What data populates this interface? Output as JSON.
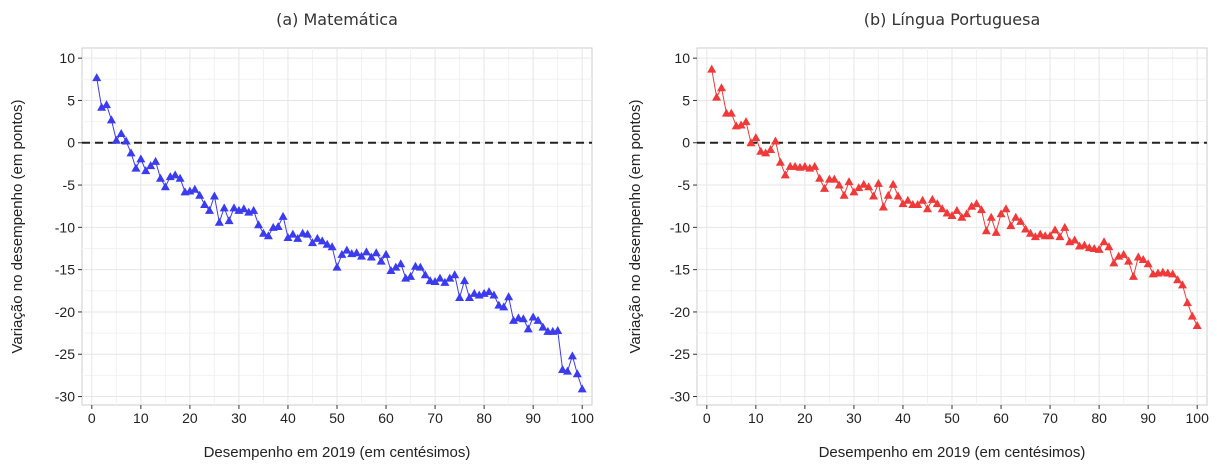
{
  "chart_data": [
    {
      "type": "line",
      "title": "(a) Matemática",
      "xlabel": "Desempenho em 2019 (em centésimos)",
      "ylabel": "Variação no desempenho (em pontos)",
      "x": [
        1,
        2,
        3,
        4,
        5,
        6,
        7,
        8,
        9,
        10,
        11,
        12,
        13,
        14,
        15,
        16,
        17,
        18,
        19,
        20,
        21,
        22,
        23,
        24,
        25,
        26,
        27,
        28,
        29,
        30,
        31,
        32,
        33,
        34,
        35,
        36,
        37,
        38,
        39,
        40,
        41,
        42,
        43,
        44,
        45,
        46,
        47,
        48,
        49,
        50,
        51,
        52,
        53,
        54,
        55,
        56,
        57,
        58,
        59,
        60,
        61,
        62,
        63,
        64,
        65,
        66,
        67,
        68,
        69,
        70,
        71,
        72,
        73,
        74,
        75,
        76,
        77,
        78,
        79,
        80,
        81,
        82,
        83,
        84,
        85,
        86,
        87,
        88,
        89,
        90,
        91,
        92,
        93,
        94,
        95,
        96,
        97,
        98,
        99,
        100
      ],
      "values": [
        7.7,
        4.2,
        4.5,
        2.7,
        0.3,
        1.1,
        0.2,
        -1.2,
        -3,
        -1.9,
        -3.3,
        -2.7,
        -2.2,
        -4.2,
        -5.2,
        -4,
        -3.8,
        -4.2,
        -5.8,
        -5.7,
        -5.5,
        -6.2,
        -7.3,
        -8,
        -6.3,
        -9.4,
        -7.7,
        -9.2,
        -7.7,
        -8,
        -7.8,
        -8.2,
        -8,
        -9.7,
        -10.7,
        -11,
        -10,
        -9.9,
        -8.7,
        -11.2,
        -10.8,
        -11.3,
        -10.7,
        -10.8,
        -11.8,
        -11.3,
        -11.6,
        -12,
        -12.3,
        -14.7,
        -13.2,
        -12.7,
        -13.1,
        -13,
        -13.4,
        -12.9,
        -13.5,
        -13,
        -14,
        -13.2,
        -15.1,
        -14.7,
        -14.3,
        -16,
        -15.8,
        -14.6,
        -14.7,
        -15.6,
        -16.3,
        -16.4,
        -16,
        -16.5,
        -16,
        -15.6,
        -18.3,
        -16.3,
        -18.3,
        -17.8,
        -18,
        -17.8,
        -17.6,
        -18,
        -19.2,
        -19.4,
        -18.2,
        -21,
        -20.7,
        -20.8,
        -22,
        -20.6,
        -21,
        -21.8,
        -22.3,
        -22.3,
        -22.2,
        -26.8,
        -27,
        -25.2,
        -27.3,
        -29.1
      ],
      "color": "#3b3bf0",
      "marker": "triangle",
      "hline": 0,
      "xlim": [
        -2,
        102
      ],
      "xticks": [
        0,
        10,
        20,
        30,
        40,
        50,
        60,
        70,
        80,
        90,
        100
      ],
      "ylim": [
        -31,
        11.2
      ],
      "yticks": [
        -30,
        -25,
        -20,
        -15,
        -10,
        -5,
        0,
        5,
        10
      ],
      "grid": true
    },
    {
      "type": "line",
      "title": "(b) Língua Portuguesa",
      "xlabel": "Desempenho em 2019 (em centésimos)",
      "ylabel": "Variação no desempenho (em pontos)",
      "x": [
        1,
        2,
        3,
        4,
        5,
        6,
        7,
        8,
        9,
        10,
        11,
        12,
        13,
        14,
        15,
        16,
        17,
        18,
        19,
        20,
        21,
        22,
        23,
        24,
        25,
        26,
        27,
        28,
        29,
        30,
        31,
        32,
        33,
        34,
        35,
        36,
        37,
        38,
        39,
        40,
        41,
        42,
        43,
        44,
        45,
        46,
        47,
        48,
        49,
        50,
        51,
        52,
        53,
        54,
        55,
        56,
        57,
        58,
        59,
        60,
        61,
        62,
        63,
        64,
        65,
        66,
        67,
        68,
        69,
        70,
        71,
        72,
        73,
        74,
        75,
        76,
        77,
        78,
        79,
        80,
        81,
        82,
        83,
        84,
        85,
        86,
        87,
        88,
        89,
        90,
        91,
        92,
        93,
        94,
        95,
        96,
        97,
        98,
        99,
        100
      ],
      "values": [
        8.7,
        5.4,
        6.5,
        3.5,
        3.5,
        2,
        2.1,
        2.5,
        0,
        0.6,
        -1,
        -1.2,
        -0.8,
        0.2,
        -2.3,
        -3.8,
        -2.8,
        -2.8,
        -2.9,
        -2.8,
        -3,
        -2.8,
        -4.2,
        -5.4,
        -4.3,
        -4.3,
        -5,
        -6.2,
        -4.6,
        -5.8,
        -5.3,
        -4.9,
        -5.2,
        -6.3,
        -4.8,
        -7.6,
        -6.2,
        -4.9,
        -6.3,
        -7.2,
        -6.8,
        -7.3,
        -7.3,
        -6.8,
        -7.8,
        -6.7,
        -7.2,
        -7.8,
        -8.3,
        -8.6,
        -8,
        -8.8,
        -8.4,
        -7.5,
        -7.2,
        -7.9,
        -10.4,
        -8.8,
        -10.6,
        -8.4,
        -7.8,
        -9.8,
        -8.8,
        -9.3,
        -10.2,
        -10.7,
        -11.1,
        -10.8,
        -11,
        -11,
        -10.3,
        -11.1,
        -10,
        -11.7,
        -11.5,
        -12.2,
        -12.1,
        -12.4,
        -12.5,
        -12.6,
        -11.7,
        -12.3,
        -14.2,
        -13.4,
        -13.2,
        -14,
        -15.8,
        -13.5,
        -13.8,
        -14.3,
        -15.5,
        -15.4,
        -15.3,
        -15.4,
        -15.5,
        -16.2,
        -16.8,
        -18.9,
        -20.5,
        -21.6
      ],
      "color": "#f03a3a",
      "marker": "triangle",
      "hline": 0,
      "xlim": [
        -2,
        102
      ],
      "xticks": [
        0,
        10,
        20,
        30,
        40,
        50,
        60,
        70,
        80,
        90,
        100
      ],
      "ylim": [
        -31,
        11.2
      ],
      "yticks": [
        -30,
        -25,
        -20,
        -15,
        -10,
        -5,
        0,
        5,
        10
      ],
      "grid": true
    }
  ]
}
